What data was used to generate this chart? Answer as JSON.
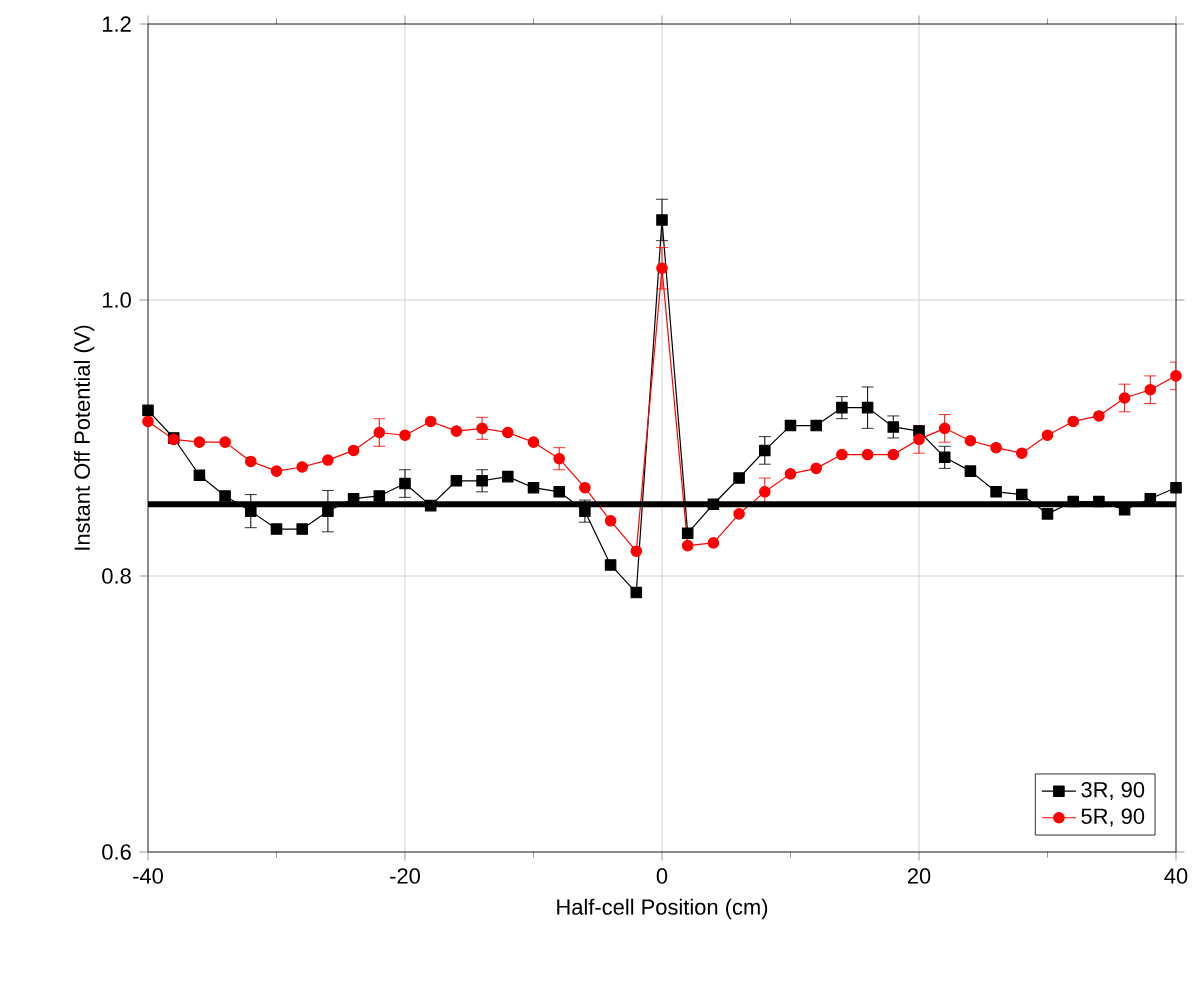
{
  "chart_data": {
    "type": "line",
    "xlabel": "Half-cell Position (cm)",
    "ylabel": "Instant Off Potential (V)",
    "xlim": [
      -40,
      40
    ],
    "ylim": [
      0.6,
      1.2
    ],
    "xticks": [
      -40,
      -20,
      0,
      20,
      40
    ],
    "yticks": [
      0.6,
      0.8,
      {
        "value": 1.0,
        "label": "1.0"
      },
      1.2
    ],
    "grid": true,
    "legend": "bottom right",
    "ref_lines": [
      {
        "axis": "y",
        "value": 0.852,
        "color": "#000000"
      }
    ],
    "series": [
      {
        "name": "3R, 90",
        "color": "#000000",
        "marker": "square",
        "x": [
          -40,
          -38,
          -36,
          -34,
          -32,
          -30,
          -28,
          -26,
          -24,
          -22,
          -20,
          -18,
          -16,
          -14,
          -12,
          -10,
          -8,
          -6,
          -4,
          -2,
          0,
          2,
          4,
          6,
          8,
          10,
          12,
          14,
          16,
          18,
          20,
          22,
          24,
          26,
          28,
          30,
          32,
          34,
          36,
          38,
          40
        ],
        "values": [
          0.92,
          0.9,
          0.873,
          0.858,
          0.847,
          0.834,
          0.834,
          0.847,
          0.856,
          0.858,
          0.867,
          0.851,
          0.869,
          0.869,
          0.872,
          0.864,
          0.861,
          0.847,
          0.808,
          0.788,
          1.058,
          0.831,
          0.852,
          0.871,
          0.891,
          0.909,
          0.909,
          0.922,
          0.922,
          0.908,
          0.905,
          0.886,
          0.876,
          0.861,
          0.859,
          0.845,
          0.854,
          0.854,
          0.848,
          0.856,
          0.864
        ],
        "errors": [
          null,
          null,
          null,
          null,
          0.012,
          null,
          null,
          0.015,
          null,
          null,
          0.01,
          null,
          null,
          0.008,
          null,
          null,
          null,
          0.008,
          null,
          null,
          0.015,
          null,
          null,
          null,
          0.01,
          null,
          null,
          0.008,
          0.015,
          0.008,
          null,
          0.008,
          null,
          null,
          null,
          null,
          null,
          null,
          null,
          null,
          null
        ]
      },
      {
        "name": "5R, 90",
        "color": "#ff0000",
        "marker": "circle",
        "x": [
          -40,
          -38,
          -36,
          -34,
          -32,
          -30,
          -28,
          -26,
          -24,
          -22,
          -20,
          -18,
          -16,
          -14,
          -12,
          -10,
          -8,
          -6,
          -4,
          -2,
          0,
          2,
          4,
          6,
          8,
          10,
          12,
          14,
          16,
          18,
          20,
          22,
          24,
          26,
          28,
          30,
          32,
          34,
          36,
          38,
          40
        ],
        "values": [
          0.912,
          0.899,
          0.897,
          0.897,
          0.883,
          0.876,
          0.879,
          0.884,
          0.891,
          0.904,
          0.902,
          0.912,
          0.905,
          0.907,
          0.904,
          0.897,
          0.885,
          0.864,
          0.84,
          0.818,
          1.023,
          0.822,
          0.824,
          0.845,
          0.861,
          0.874,
          0.878,
          0.888,
          0.888,
          0.888,
          0.899,
          0.907,
          0.898,
          0.893,
          0.889,
          0.902,
          0.912,
          0.916,
          0.929,
          0.935,
          0.945
        ],
        "errors": [
          null,
          null,
          null,
          null,
          null,
          null,
          null,
          null,
          null,
          0.01,
          null,
          null,
          null,
          0.008,
          null,
          null,
          0.008,
          null,
          null,
          null,
          0.015,
          null,
          null,
          null,
          0.01,
          null,
          null,
          null,
          null,
          null,
          0.01,
          0.01,
          null,
          null,
          null,
          null,
          null,
          null,
          0.01,
          0.01,
          0.01
        ]
      }
    ]
  }
}
